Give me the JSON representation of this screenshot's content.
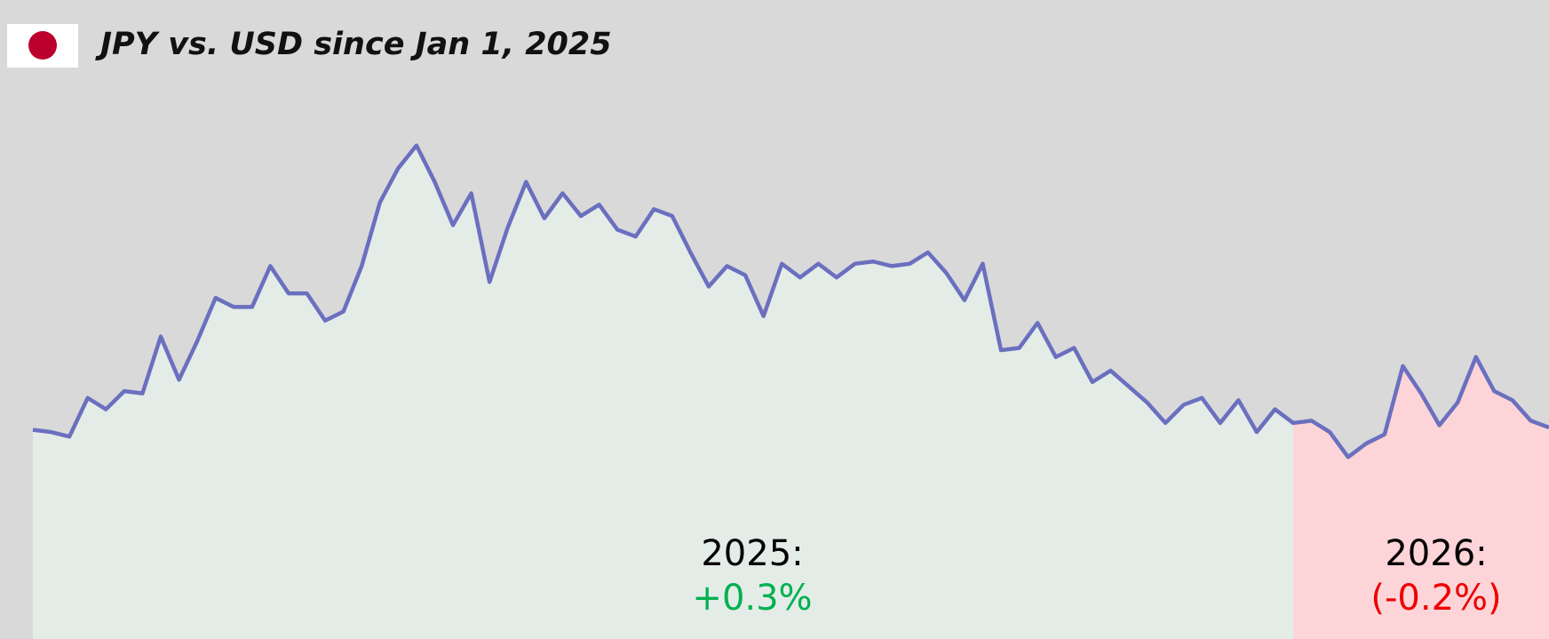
{
  "chart_data": {
    "type": "line",
    "title": "JPY vs. USD since Jan 1, 2025",
    "color": "#6b6fbf",
    "ylim": [
      -9.2,
      18.9
    ],
    "periods": [
      {
        "label": "2025:",
        "value": 0.3,
        "value_label": "+0.3%",
        "color": "#e4ece8",
        "label_color": "#00b050",
        "values": [
          0,
          -0.1,
          -0.3,
          1.4,
          0.9,
          1.7,
          1.6,
          4.1,
          2.2,
          3.9,
          5.8,
          5.4,
          5.4,
          7.2,
          6.0,
          6.0,
          4.8,
          5.2,
          7.2,
          10.0,
          11.5,
          12.5,
          10.9,
          9.0,
          10.4,
          6.5,
          8.9,
          10.9,
          9.3,
          10.4,
          9.4,
          9.9,
          8.8,
          8.5,
          9.7,
          9.4,
          7.8,
          6.3,
          7.2,
          6.8,
          5.0,
          7.3,
          6.7,
          7.3,
          6.7,
          7.3,
          7.4,
          7.2,
          7.3,
          7.8,
          6.9,
          5.7,
          7.3,
          3.5,
          3.6,
          4.7,
          3.2,
          3.6,
          2.1,
          2.6,
          1.9,
          1.2,
          0.3,
          1.1,
          1.4,
          0.3,
          1.3,
          -0.1,
          0.9,
          0.3
        ]
      },
      {
        "label": "2026:",
        "value": -0.2,
        "value_label": "(-0.2%)",
        "color": "#fdd5d8",
        "label_color": "#ee0000",
        "values": [
          0.4,
          -0.1,
          -1.2,
          -0.6,
          -0.2,
          2.8,
          1.6,
          0.2,
          1.2,
          3.2,
          1.7,
          1.3,
          0.4,
          0.1
        ]
      }
    ]
  }
}
